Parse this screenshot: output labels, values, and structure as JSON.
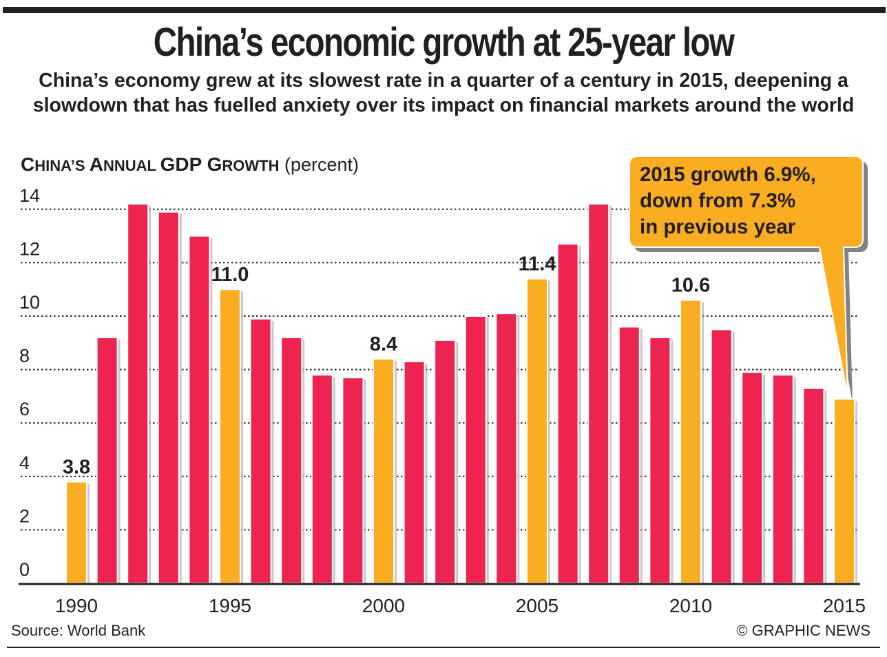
{
  "header": {
    "title": "China’s economic growth at 25-year low",
    "subtitle": "China’s economy grew at its slowest rate in a quarter of a century in 2015, deepening a slowdown that has fuelled anxiety over its impact on financial markets around the world"
  },
  "chart_heading": {
    "part1_big": "C",
    "part1_small": "HINA’S ",
    "part2_big": "A",
    "part2_small": "NNUAL ",
    "part3_big": "GDP G",
    "part3_small": "ROWTH",
    "unit": "(percent)"
  },
  "callout": {
    "lines": [
      "2015 growth 6.9%,",
      "down from 7.3%",
      "in previous year"
    ]
  },
  "footer": {
    "source": "Source: World Bank",
    "credit": "© GRAPHIC NEWS"
  },
  "colors": {
    "highlight": "#fbad22",
    "regular": "#ed2350",
    "text": "#231f20",
    "shadow": "#808285"
  },
  "chart_data": {
    "type": "bar",
    "title": "China’s Annual GDP Growth",
    "ylabel": "percent",
    "xlabel": "",
    "ylim": [
      0,
      14
    ],
    "yticks": [
      0,
      2,
      4,
      6,
      8,
      10,
      12,
      14
    ],
    "xtick_labels": [
      "1990",
      "1995",
      "2000",
      "2005",
      "2010",
      "2015"
    ],
    "grid": true,
    "categories": [
      "1990",
      "1991",
      "1992",
      "1993",
      "1994",
      "1995",
      "1996",
      "1997",
      "1998",
      "1999",
      "2000",
      "2001",
      "2002",
      "2003",
      "2004",
      "2005",
      "2006",
      "2007",
      "2008",
      "2009",
      "2010",
      "2011",
      "2012",
      "2013",
      "2014",
      "2015"
    ],
    "values": [
      3.8,
      9.2,
      14.2,
      13.9,
      13.0,
      11.0,
      9.9,
      9.2,
      7.8,
      7.7,
      8.4,
      8.3,
      9.1,
      10.0,
      10.1,
      11.4,
      12.7,
      14.2,
      9.6,
      9.2,
      10.6,
      9.5,
      7.9,
      7.8,
      7.3,
      6.9
    ],
    "highlighted": [
      "1990",
      "1995",
      "2000",
      "2005",
      "2010",
      "2015"
    ],
    "data_labels": [
      {
        "category": "1990",
        "text": "3.8"
      },
      {
        "category": "1995",
        "text": "11.0"
      },
      {
        "category": "2000",
        "text": "8.4"
      },
      {
        "category": "2005",
        "text": "11.4"
      },
      {
        "category": "2010",
        "text": "10.6"
      }
    ]
  }
}
